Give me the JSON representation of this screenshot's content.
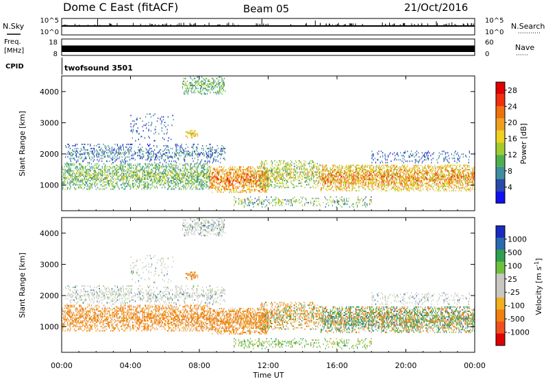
{
  "header": {
    "station": "Dome C East (fitACF)",
    "beam": "Beam 05",
    "date": "21/Oct/2016"
  },
  "top_panels": {
    "nsky_label": "N.Sky",
    "nsky_ticks": [
      "10^5",
      "10^0"
    ],
    "nsearch_label": "N.Search",
    "nsearch_ticks": [
      "10^5",
      "10^0"
    ],
    "freq_label_1": "Freq.",
    "freq_label_2": "[MHz]",
    "freq_ticks": [
      "18",
      "8"
    ],
    "nave_label": "Nave",
    "nave_ticks": [
      "60",
      "0"
    ],
    "cpid_label": "CPID",
    "cpid_value": "twofsound 3501"
  },
  "colors": {
    "power": [
      "#1010f0",
      "#2a4aa8",
      "#3f8fa0",
      "#50b050",
      "#a0cc30",
      "#f0d020",
      "#f0a020",
      "#f07010",
      "#f03010",
      "#e00000"
    ],
    "velocity": [
      "#e00000",
      "#f05020",
      "#f08010",
      "#f0b020",
      "#c8c8c0",
      "#c8c8c0",
      "#70c040",
      "#30a050",
      "#2a6ab0",
      "#1a2ac0"
    ]
  },
  "chart_data": [
    {
      "type": "heatmap",
      "name": "power",
      "ylabel": "Slant Range [km]",
      "xlabel": "",
      "xlim": [
        0,
        24
      ],
      "ylim": [
        180,
        4500
      ],
      "x_tick_labels": [
        "00:00",
        "04:00",
        "08:00",
        "12:00",
        "16:00",
        "20:00",
        "00:00"
      ],
      "y_ticks": [
        1000,
        2000,
        3000,
        4000
      ],
      "y_tick_labels": [
        "1000",
        "2000",
        "3000",
        "4000"
      ],
      "colorbar": {
        "label": "Power [dB]",
        "ticks": [
          "4",
          "8",
          "12",
          "16",
          "20",
          "24",
          "28"
        ],
        "range": [
          0,
          30
        ]
      }
    },
    {
      "type": "heatmap",
      "name": "velocity",
      "ylabel": "Slant Range [km]",
      "xlabel": "Time UT",
      "xlim": [
        0,
        24
      ],
      "ylim": [
        180,
        4500
      ],
      "x_tick_labels": [
        "00:00",
        "04:00",
        "08:00",
        "12:00",
        "16:00",
        "20:00",
        "00:00"
      ],
      "y_ticks": [
        1000,
        2000,
        3000,
        4000
      ],
      "y_tick_labels": [
        "1000",
        "2000",
        "3000",
        "4000"
      ],
      "colorbar": {
        "label_main": "Velocity",
        "label_unit": "[m s",
        "label_sup": "-1",
        "label_end": "]",
        "ticks": [
          "1000",
          "500",
          "100",
          "25",
          "-25",
          "-100",
          "-500",
          "-1000"
        ]
      }
    }
  ],
  "regions": [
    {
      "t0": 0.0,
      "t1": 8.6,
      "r0": 850,
      "r1": 1700,
      "p": 0.55,
      "pw": [
        6,
        18
      ],
      "vel": "neg"
    },
    {
      "t0": 8.6,
      "t1": 12.0,
      "r0": 750,
      "r1": 1600,
      "p": 0.7,
      "pw": [
        14,
        29
      ],
      "vel": "neg"
    },
    {
      "t0": 11.5,
      "t1": 15.0,
      "r0": 900,
      "r1": 1800,
      "p": 0.45,
      "pw": [
        8,
        22
      ],
      "vel": "mixneg"
    },
    {
      "t0": 15.0,
      "t1": 24.0,
      "r0": 800,
      "r1": 1650,
      "p": 0.65,
      "pw": [
        12,
        28
      ],
      "vel": "mix"
    },
    {
      "t0": 0.2,
      "t1": 9.5,
      "r0": 1700,
      "r1": 2300,
      "p": 0.3,
      "pw": [
        2,
        12
      ],
      "vel": "grey"
    },
    {
      "t0": 4.0,
      "t1": 6.5,
      "r0": 2400,
      "r1": 3300,
      "p": 0.12,
      "pw": [
        2,
        10
      ],
      "vel": "grey"
    },
    {
      "t0": 7.0,
      "t1": 9.5,
      "r0": 3900,
      "r1": 4450,
      "p": 0.4,
      "pw": [
        6,
        16
      ],
      "vel": "grey"
    },
    {
      "t0": 7.2,
      "t1": 7.9,
      "r0": 2500,
      "r1": 2750,
      "p": 0.6,
      "pw": [
        14,
        22
      ],
      "vel": "neg"
    },
    {
      "t0": 10.0,
      "t1": 18.0,
      "r0": 280,
      "r1": 620,
      "p": 0.25,
      "pw": [
        4,
        20
      ],
      "vel": "pos"
    },
    {
      "t0": 18.0,
      "t1": 24.0,
      "r0": 1700,
      "r1": 2100,
      "p": 0.2,
      "pw": [
        2,
        10
      ],
      "vel": "grey"
    }
  ]
}
